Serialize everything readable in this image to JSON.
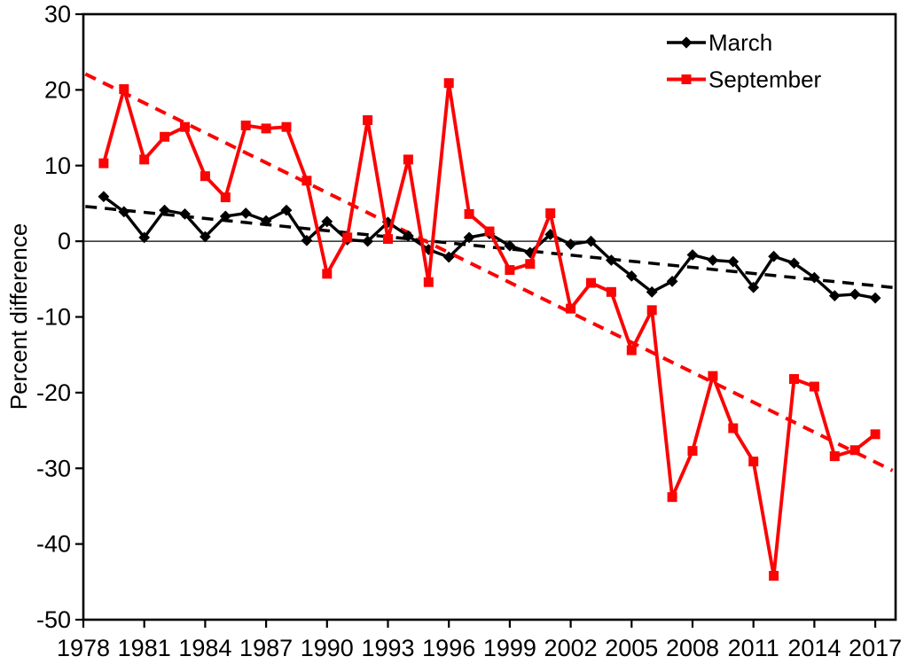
{
  "chart_data": {
    "type": "line",
    "title": "",
    "xlabel": "",
    "ylabel": "Percent difference",
    "xlim": [
      1978,
      2018
    ],
    "ylim": [
      -50,
      30
    ],
    "xticks": [
      1978,
      1981,
      1984,
      1987,
      1990,
      1993,
      1996,
      1999,
      2002,
      2005,
      2008,
      2011,
      2014,
      2017
    ],
    "yticks": [
      30,
      20,
      10,
      0,
      -10,
      -20,
      -30,
      -40,
      -50
    ],
    "grid": false,
    "zero_line": true,
    "legend_position": "top-right-inside",
    "x": [
      1979,
      1980,
      1981,
      1982,
      1983,
      1984,
      1985,
      1986,
      1987,
      1988,
      1989,
      1990,
      1991,
      1992,
      1993,
      1994,
      1995,
      1996,
      1997,
      1998,
      1999,
      2000,
      2001,
      2002,
      2003,
      2004,
      2005,
      2006,
      2007,
      2008,
      2009,
      2010,
      2011,
      2012,
      2013,
      2014,
      2015,
      2016,
      2017
    ],
    "series": [
      {
        "name": "March",
        "color": "#000000",
        "marker": "diamond",
        "line_style": "solid",
        "values": [
          5.9,
          3.9,
          0.5,
          4.1,
          3.6,
          0.6,
          3.3,
          3.7,
          2.7,
          4.1,
          0.1,
          2.6,
          0.2,
          0.0,
          2.5,
          0.7,
          -1.1,
          -2.1,
          0.5,
          1.0,
          -0.6,
          -1.5,
          0.9,
          -0.4,
          0.0,
          -2.5,
          -4.6,
          -6.7,
          -5.3,
          -1.8,
          -2.5,
          -2.7,
          -6.1,
          -2.0,
          -2.9,
          -4.8,
          -7.2,
          -7.0,
          -7.5
        ]
      },
      {
        "name": "September",
        "color": "#fb0404",
        "marker": "square",
        "line_style": "solid",
        "values": [
          10.3,
          20.1,
          10.8,
          13.8,
          15.1,
          8.6,
          5.8,
          15.3,
          14.9,
          15.1,
          8.0,
          -4.3,
          0.5,
          16.0,
          0.3,
          10.8,
          -5.4,
          20.9,
          3.6,
          1.3,
          -3.8,
          -3.0,
          3.7,
          -8.9,
          -5.5,
          -6.7,
          -14.4,
          -9.1,
          -33.8,
          -27.7,
          -17.8,
          -24.7,
          -29.1,
          -44.2,
          -18.2,
          -19.2,
          -28.4,
          -27.6,
          -25.5
        ]
      }
    ],
    "trendlines": [
      {
        "name": "March linear trend",
        "color": "#000000",
        "style": "dashed",
        "x0": 1978.1,
        "y0": 4.6,
        "x1": 2017.85,
        "y1": -6.1
      },
      {
        "name": "September linear trend",
        "color": "#fb0404",
        "style": "dashed",
        "x0": 1978.1,
        "y0": 22.1,
        "x1": 2017.85,
        "y1": -30.3
      }
    ]
  },
  "colors": {
    "march": "#000000",
    "september": "#fb0404",
    "axis": "#000000",
    "background": "#ffffff"
  }
}
